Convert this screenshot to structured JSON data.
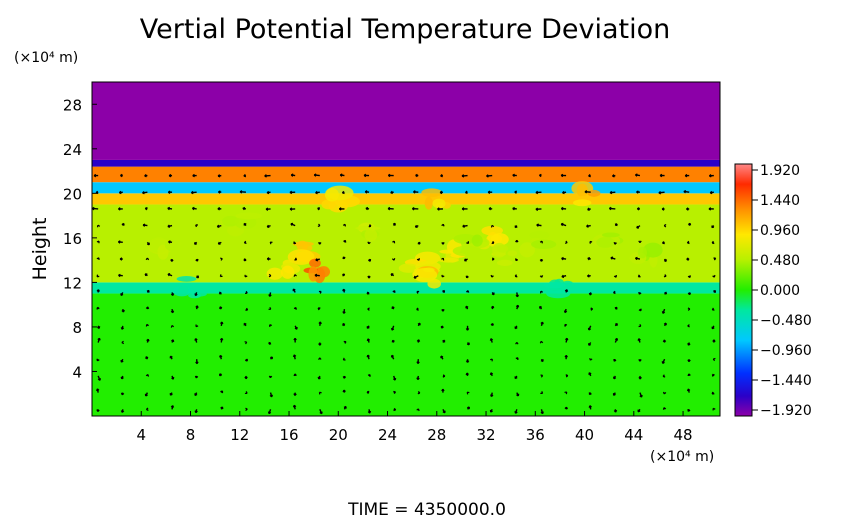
{
  "chart_data": {
    "type": "heatmap",
    "title": "Vertial Potential Temperature Deviation",
    "ylabel": "Height",
    "x_unit": "(×10⁴ m)",
    "y_unit": "(×10⁴ m)",
    "xlim": [
      0,
      51
    ],
    "ylim": [
      0,
      30
    ],
    "x_ticks": [
      4,
      8,
      12,
      16,
      20,
      24,
      28,
      32,
      36,
      40,
      44,
      48
    ],
    "y_ticks": [
      4,
      8,
      12,
      16,
      20,
      24,
      28
    ],
    "colorbar": {
      "range": [
        -1.92,
        1.92
      ],
      "ticks": [
        "1.920",
        "1.440",
        "0.960",
        "0.480",
        "0.000",
        "−0.480",
        "−0.960",
        "−1.440",
        "−1.920"
      ]
    },
    "layers": [
      {
        "y_from": 0,
        "y_to": 11,
        "value": 0.0
      },
      {
        "y_from": 11,
        "y_to": 12,
        "value": -0.3
      },
      {
        "y_from": 12,
        "y_to": 19,
        "value": 0.45
      },
      {
        "y_from": 19,
        "y_to": 20,
        "value": 1.0
      },
      {
        "y_from": 20,
        "y_to": 21,
        "value": -0.8
      },
      {
        "y_from": 21,
        "y_to": 22.4,
        "value": 1.3
      },
      {
        "y_from": 22.4,
        "y_to": 23,
        "value": -1.6
      },
      {
        "y_from": 23,
        "y_to": 30,
        "value": -1.92
      }
    ],
    "vectors": "wind vector field overlay",
    "footer": "TIME  =  4350000.0"
  },
  "colors": {
    "stratosphere": "#9a00a8",
    "background_field": "#22ee00",
    "arrow": "#000000"
  }
}
